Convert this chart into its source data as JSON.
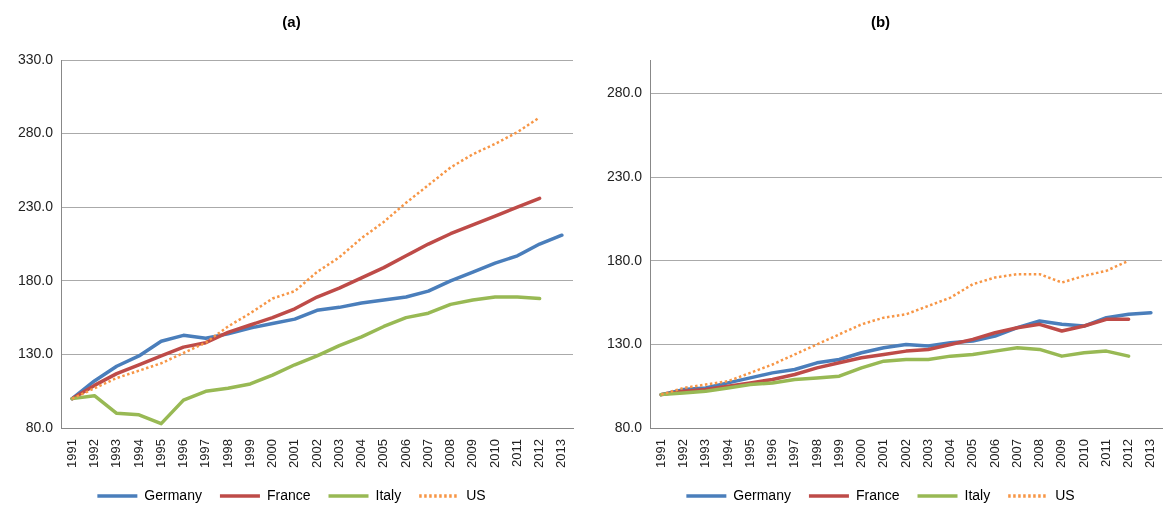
{
  "chart_data": [
    {
      "type": "line",
      "title": "(a)",
      "categories": [
        "1991",
        "1992",
        "1993",
        "1994",
        "1995",
        "1996",
        "1997",
        "1998",
        "1999",
        "2000",
        "2001",
        "2002",
        "2003",
        "2004",
        "2005",
        "2006",
        "2007",
        "2008",
        "2009",
        "2010",
        "2011",
        "2012",
        "2013"
      ],
      "series": [
        {
          "name": "Germany",
          "color": "#4a7ebb",
          "values": [
            100,
            112,
            122,
            129,
            139,
            143,
            141,
            144,
            148,
            151,
            154,
            160,
            162,
            165,
            167,
            169,
            173,
            180,
            186,
            192,
            197,
            205,
            211
          ]
        },
        {
          "name": "France",
          "color": "#be4b48",
          "values": [
            100,
            109,
            117,
            123,
            129,
            135,
            138,
            145,
            150,
            155,
            161,
            169,
            175,
            182,
            189,
            197,
            205,
            212,
            218,
            224,
            230,
            236,
            null
          ]
        },
        {
          "name": "Italy",
          "color": "#98b954",
          "values": [
            100,
            102,
            90,
            89,
            83,
            99,
            105,
            107,
            110,
            116,
            123,
            129,
            136,
            142,
            149,
            155,
            158,
            164,
            167,
            169,
            169,
            168,
            null
          ]
        },
        {
          "name": "US",
          "color": "#f79646",
          "line_style": "dotted",
          "values": [
            100,
            107,
            114,
            119,
            124,
            131,
            138,
            149,
            158,
            168,
            173,
            186,
            196,
            209,
            220,
            233,
            245,
            257,
            266,
            273,
            281,
            291,
            null
          ]
        }
      ],
      "ylim": [
        80,
        330
      ],
      "yticks": [
        {
          "value": 80,
          "label": "80.0"
        },
        {
          "value": 130,
          "label": "130.0"
        },
        {
          "value": 180,
          "label": "180.0"
        },
        {
          "value": 230,
          "label": "230.0"
        },
        {
          "value": 280,
          "label": "280.0"
        },
        {
          "value": 330,
          "label": "330.0"
        }
      ],
      "grid": "y",
      "legend": "bottom",
      "marker": "none"
    },
    {
      "type": "line",
      "title": "(b)",
      "categories": [
        "1991",
        "1992",
        "1993",
        "1994",
        "1995",
        "1996",
        "1997",
        "1998",
        "1999",
        "2000",
        "2001",
        "2002",
        "2003",
        "2004",
        "2005",
        "2006",
        "2007",
        "2008",
        "2009",
        "2010",
        "2011",
        "2012",
        "2013"
      ],
      "series": [
        {
          "name": "Germany",
          "color": "#4a7ebb",
          "values": [
            100,
            103,
            104,
            107,
            110,
            113,
            115,
            119,
            121,
            125,
            128,
            130,
            129,
            131,
            132,
            135,
            140,
            144,
            142,
            141,
            146,
            148,
            149
          ]
        },
        {
          "name": "France",
          "color": "#be4b48",
          "values": [
            100,
            102,
            103,
            105,
            107,
            109,
            112,
            116,
            119,
            122,
            124,
            126,
            127,
            130,
            133,
            137,
            140,
            142,
            138,
            141,
            145,
            145,
            null
          ]
        },
        {
          "name": "Italy",
          "color": "#98b954",
          "values": [
            100,
            101,
            102,
            104,
            106,
            107,
            109,
            110,
            111,
            116,
            120,
            121,
            121,
            123,
            124,
            126,
            128,
            127,
            123,
            125,
            126,
            123,
            null
          ]
        },
        {
          "name": "US",
          "color": "#f79646",
          "line_style": "dotted",
          "values": [
            100,
            104,
            106,
            108,
            113,
            118,
            124,
            130,
            136,
            142,
            146,
            148,
            153,
            158,
            166,
            170,
            172,
            172,
            167,
            171,
            174,
            180,
            null
          ]
        }
      ],
      "ylim": [
        80,
        300
      ],
      "yticks": [
        {
          "value": 80,
          "label": "80.0"
        },
        {
          "value": 130,
          "label": "130.0"
        },
        {
          "value": 180,
          "label": "180.0"
        },
        {
          "value": 230,
          "label": "230.0"
        },
        {
          "value": 280,
          "label": "280.0"
        }
      ],
      "grid": "y",
      "legend": "bottom",
      "marker": "none"
    }
  ]
}
